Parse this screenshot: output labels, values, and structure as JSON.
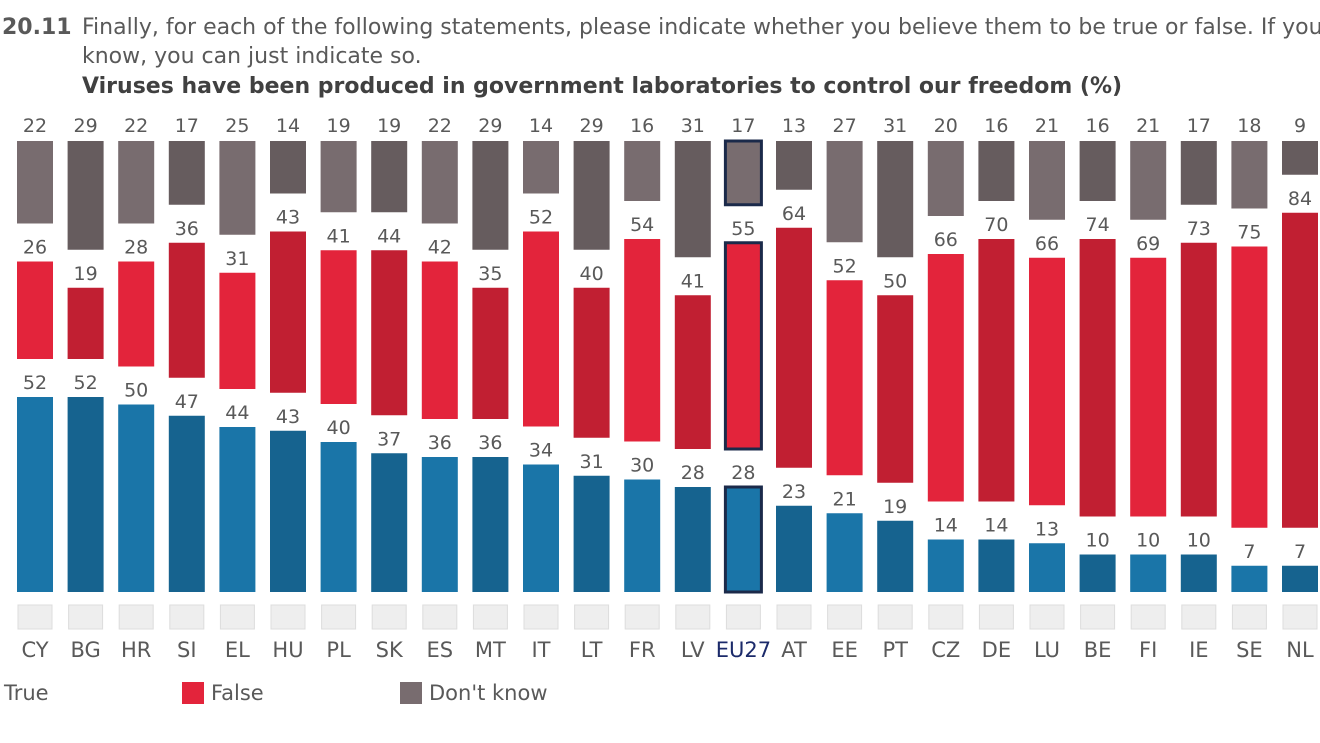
{
  "chart_data": {
    "type": "separated-stacked-bar",
    "question_number": "20.11",
    "question": "Finally, for each of the following statements, please indicate whether you believe them to be true or false. If you don't",
    "question_line2": "know, you can just indicate so.",
    "title": "Viruses have been produced in government laboratories to control our freedom  (%)",
    "categories": [
      "CY",
      "BG",
      "HR",
      "SI",
      "EL",
      "HU",
      "PL",
      "SK",
      "ES",
      "MT",
      "IT",
      "LT",
      "FR",
      "LV",
      "EU27",
      "AT",
      "EE",
      "PT",
      "CZ",
      "DE",
      "LU",
      "BE",
      "FI",
      "IE",
      "SE",
      "NL"
    ],
    "highlight_category": "EU27",
    "series": [
      {
        "name": "True",
        "color": "#1a75a8",
        "values": [
          52,
          52,
          50,
          47,
          44,
          43,
          40,
          37,
          36,
          36,
          34,
          31,
          30,
          28,
          28,
          23,
          21,
          19,
          14,
          14,
          13,
          10,
          10,
          10,
          7,
          7
        ]
      },
      {
        "name": "False",
        "color": "#e3243b",
        "values": [
          26,
          19,
          28,
          36,
          31,
          43,
          41,
          44,
          42,
          35,
          52,
          40,
          54,
          41,
          55,
          64,
          52,
          50,
          66,
          70,
          66,
          74,
          69,
          73,
          75,
          84
        ]
      },
      {
        "name": "Don't know",
        "color": "#786c6f",
        "values": [
          22,
          29,
          22,
          17,
          25,
          14,
          19,
          19,
          22,
          29,
          14,
          29,
          16,
          31,
          17,
          13,
          27,
          31,
          20,
          16,
          21,
          16,
          21,
          17,
          18,
          9
        ]
      }
    ]
  }
}
